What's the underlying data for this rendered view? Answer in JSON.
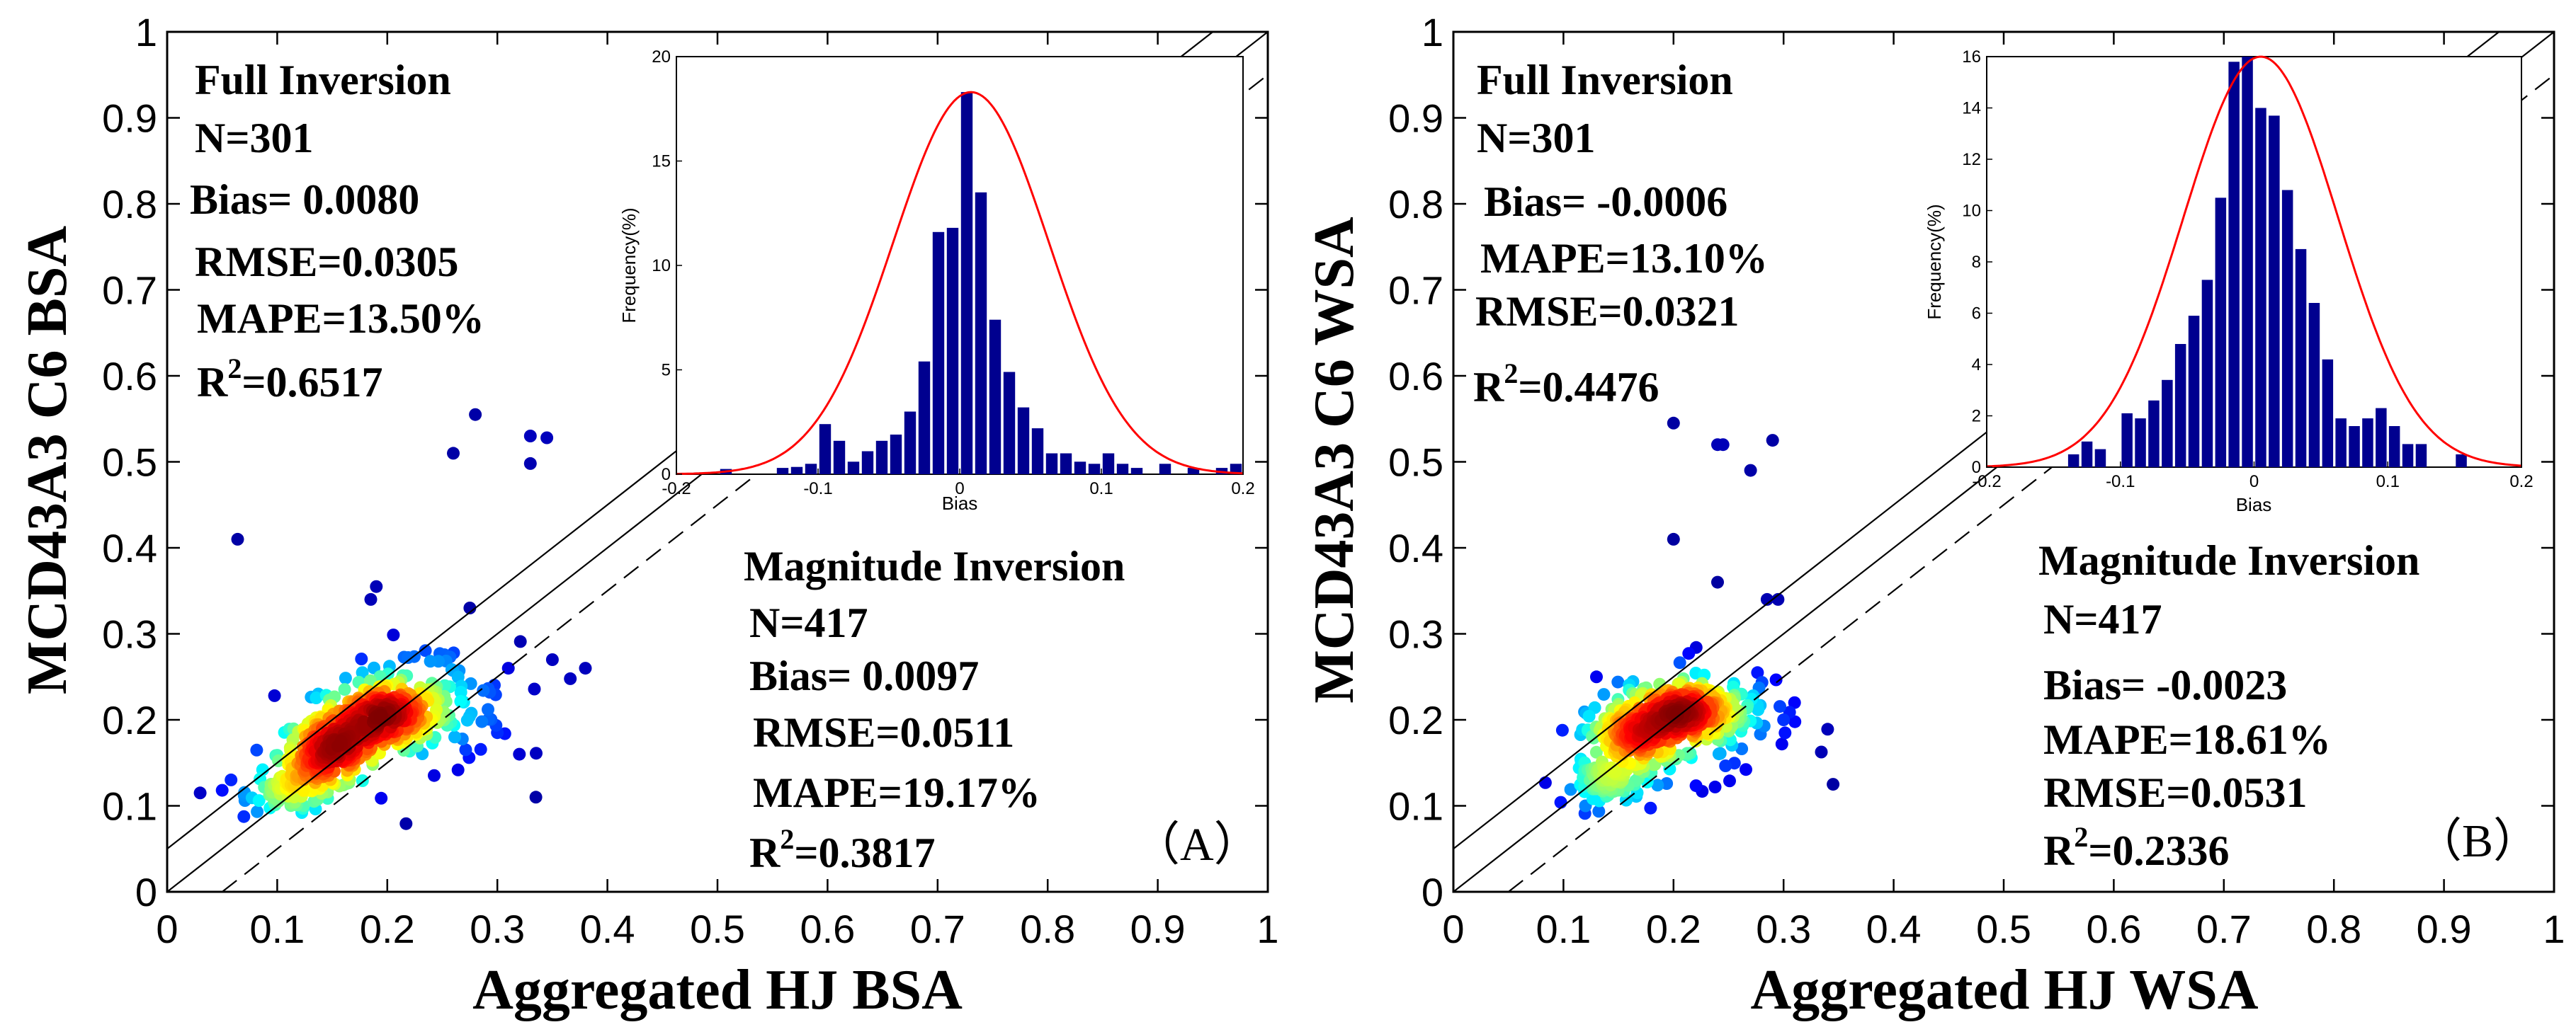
{
  "panels": [
    {
      "id": "A",
      "panel_label": "（A）",
      "xlabel": "Aggregated HJ BSA",
      "ylabel": "MCD43A3 C6 BSA",
      "xticks": [
        "0",
        "0.1",
        "0.2",
        "0.3",
        "0.4",
        "0.5",
        "0.6",
        "0.7",
        "0.8",
        "0.9",
        "1"
      ],
      "yticks": [
        "0",
        "0.1",
        "0.2",
        "0.3",
        "0.4",
        "0.5",
        "0.6",
        "0.7",
        "0.8",
        "0.9",
        "1"
      ],
      "full_inversion": {
        "title": "Full Inversion",
        "lines": [
          {
            "key": "n",
            "text": "N=301"
          },
          {
            "key": "bias",
            "text": "Bias= 0.0080"
          },
          {
            "key": "rmse",
            "text": "RMSE=0.0305"
          },
          {
            "key": "mape",
            "text": "MAPE=13.50%"
          },
          {
            "key": "r2",
            "prefix": "R",
            "sup": "2",
            "suffix": "=0.6517"
          }
        ]
      },
      "magnitude_inversion": {
        "title": "Magnitude Inversion",
        "lines": [
          {
            "key": "n",
            "text": "N=417"
          },
          {
            "key": "bias",
            "text": "Bias= 0.0097"
          },
          {
            "key": "rmse",
            "text": "RMSE=0.0511"
          },
          {
            "key": "mape",
            "text": "MAPE=19.17%"
          },
          {
            "key": "r2",
            "prefix": "R",
            "sup": "2",
            "suffix": "=0.3817"
          }
        ]
      },
      "inset": {
        "xlabel": "Bias",
        "ylabel": "Frequency(%)",
        "xticks": [
          "-0.2",
          "-0.1",
          "0",
          "0.1",
          "0.2"
        ],
        "yticks": [
          "0",
          "5",
          "10",
          "15",
          "20"
        ]
      }
    },
    {
      "id": "B",
      "panel_label": "（B）",
      "xlabel": "Aggregated HJ WSA",
      "ylabel": "MCD43A3 C6 WSA",
      "xticks": [
        "0",
        "0.1",
        "0.2",
        "0.3",
        "0.4",
        "0.5",
        "0.6",
        "0.7",
        "0.8",
        "0.9",
        "1"
      ],
      "yticks": [
        "0",
        "0.1",
        "0.2",
        "0.3",
        "0.4",
        "0.5",
        "0.6",
        "0.7",
        "0.8",
        "0.9",
        "1"
      ],
      "full_inversion": {
        "title": "Full Inversion",
        "lines": [
          {
            "key": "n",
            "text": "N=301"
          },
          {
            "key": "bias",
            "text": "Bias= -0.0006"
          },
          {
            "key": "mape",
            "text": "MAPE=13.10%"
          },
          {
            "key": "rmse",
            "text": "RMSE=0.0321"
          },
          {
            "key": "r2",
            "prefix": "R",
            "sup": "2",
            "suffix": "=0.4476"
          }
        ]
      },
      "magnitude_inversion": {
        "title": "Magnitude Inversion",
        "lines": [
          {
            "key": "n",
            "text": "N=417"
          },
          {
            "key": "bias",
            "text": "Bias= -0.0023"
          },
          {
            "key": "mape",
            "text": "MAPE=18.61%"
          },
          {
            "key": "rmse",
            "text": "RMSE=0.0531"
          },
          {
            "key": "r2",
            "prefix": "R",
            "sup": "2",
            "suffix": "=0.2336"
          }
        ]
      },
      "inset": {
        "xlabel": "Bias",
        "ylabel": "Frequency(%)",
        "xticks": [
          "-0.2",
          "-0.1",
          "0",
          "0.1",
          "0.2"
        ],
        "yticks": [
          "0",
          "2",
          "4",
          "6",
          "8",
          "10",
          "12",
          "14",
          "16"
        ]
      }
    }
  ],
  "chart_data": [
    {
      "type": "scatter",
      "panel": "A",
      "title": "",
      "xlabel": "Aggregated HJ BSA",
      "ylabel": "MCD43A3 C6 BSA",
      "xlim": [
        0,
        1
      ],
      "ylim": [
        0,
        1
      ],
      "colormap": "density (jet)",
      "reference_lines": [
        {
          "name": "1:1",
          "slope": 1,
          "intercept": 0,
          "style": "solid"
        },
        {
          "name": "+0.05",
          "slope": 1,
          "intercept": 0.05,
          "style": "solid"
        },
        {
          "name": "-0.05",
          "slope": 1,
          "intercept": -0.05,
          "style": "dashed"
        }
      ],
      "clusters": [
        {
          "cx": 0.195,
          "cy": 0.205,
          "sx": 0.028,
          "sy": 0.02,
          "n": 240
        },
        {
          "cx": 0.145,
          "cy": 0.16,
          "sx": 0.022,
          "sy": 0.02,
          "n": 190
        },
        {
          "cx": 0.115,
          "cy": 0.118,
          "sx": 0.02,
          "sy": 0.012,
          "n": 70
        },
        {
          "cx": 0.24,
          "cy": 0.22,
          "sx": 0.04,
          "sy": 0.035,
          "n": 90
        }
      ],
      "outliers": [
        [
          0.064,
          0.41
        ],
        [
          0.28,
          0.555
        ],
        [
          0.26,
          0.51
        ],
        [
          0.33,
          0.53
        ],
        [
          0.345,
          0.528
        ],
        [
          0.33,
          0.498
        ],
        [
          0.19,
          0.355
        ],
        [
          0.275,
          0.33
        ],
        [
          0.185,
          0.34
        ],
        [
          0.38,
          0.26
        ],
        [
          0.35,
          0.27
        ],
        [
          0.335,
          0.11
        ],
        [
          0.32,
          0.16
        ],
        [
          0.03,
          0.115
        ],
        [
          0.05,
          0.118
        ],
        [
          0.07,
          0.112
        ],
        [
          0.3,
          0.185
        ],
        [
          0.31,
          0.26
        ]
      ],
      "inset": {
        "type": "bar",
        "xlabel": "Bias",
        "ylabel": "Frequency(%)",
        "xlim": [
          -0.2,
          0.2
        ],
        "ylim": [
          0,
          20
        ],
        "bin_width": 0.01,
        "bin_centers": [
          -0.165,
          -0.125,
          -0.115,
          -0.105,
          -0.095,
          -0.085,
          -0.075,
          -0.065,
          -0.055,
          -0.045,
          -0.035,
          -0.025,
          -0.015,
          -0.005,
          0.005,
          0.015,
          0.025,
          0.035,
          0.045,
          0.055,
          0.065,
          0.075,
          0.085,
          0.095,
          0.105,
          0.115,
          0.125,
          0.145,
          0.165,
          0.185,
          0.195
        ],
        "frequencies": [
          0.25,
          0.3,
          0.35,
          0.5,
          2.4,
          1.6,
          0.6,
          1.1,
          1.6,
          1.9,
          3.0,
          5.4,
          11.6,
          11.8,
          18.3,
          13.5,
          7.4,
          4.9,
          3.2,
          2.2,
          1.0,
          1.0,
          0.6,
          0.5,
          1.0,
          0.5,
          0.3,
          0.5,
          0.3,
          0.3,
          0.5
        ],
        "fit": {
          "type": "normal",
          "mean": 0.008,
          "peak": 18.3,
          "sigma": 0.055
        }
      }
    },
    {
      "type": "scatter",
      "panel": "B",
      "title": "",
      "xlabel": "Aggregated HJ WSA",
      "ylabel": "MCD43A3 C6 WSA",
      "xlim": [
        0,
        1
      ],
      "ylim": [
        0,
        1
      ],
      "colormap": "density (jet)",
      "reference_lines": [
        {
          "name": "1:1",
          "slope": 1,
          "intercept": 0,
          "style": "solid"
        },
        {
          "name": "+0.05",
          "slope": 1,
          "intercept": 0.05,
          "style": "solid"
        },
        {
          "name": "-0.05",
          "slope": 1,
          "intercept": -0.05,
          "style": "dashed"
        }
      ],
      "clusters": [
        {
          "cx": 0.21,
          "cy": 0.21,
          "sx": 0.028,
          "sy": 0.018,
          "n": 230
        },
        {
          "cx": 0.165,
          "cy": 0.18,
          "sx": 0.022,
          "sy": 0.02,
          "n": 190
        },
        {
          "cx": 0.14,
          "cy": 0.125,
          "sx": 0.015,
          "sy": 0.012,
          "n": 70
        },
        {
          "cx": 0.23,
          "cy": 0.2,
          "sx": 0.04,
          "sy": 0.035,
          "n": 90
        }
      ],
      "outliers": [
        [
          0.2,
          0.545
        ],
        [
          0.24,
          0.52
        ],
        [
          0.245,
          0.52
        ],
        [
          0.29,
          0.525
        ],
        [
          0.27,
          0.49
        ],
        [
          0.2,
          0.41
        ],
        [
          0.24,
          0.36
        ],
        [
          0.285,
          0.34
        ],
        [
          0.295,
          0.34
        ],
        [
          0.345,
          0.125
        ],
        [
          0.3,
          0.2
        ],
        [
          0.12,
          0.1
        ],
        [
          0.13,
          0.25
        ],
        [
          0.31,
          0.22
        ]
      ],
      "inset": {
        "type": "bar",
        "xlabel": "Bias",
        "ylabel": "Frequency(%)",
        "xlim": [
          -0.2,
          0.2
        ],
        "ylim": [
          0,
          16
        ],
        "bin_width": 0.01,
        "bin_centers": [
          -0.135,
          -0.125,
          -0.115,
          -0.095,
          -0.085,
          -0.075,
          -0.065,
          -0.055,
          -0.045,
          -0.035,
          -0.025,
          -0.015,
          -0.005,
          0.005,
          0.015,
          0.025,
          0.035,
          0.045,
          0.055,
          0.065,
          0.075,
          0.085,
          0.095,
          0.105,
          0.115,
          0.125,
          0.155
        ],
        "frequencies": [
          0.5,
          1.0,
          0.7,
          2.1,
          1.9,
          2.6,
          3.4,
          4.8,
          5.9,
          7.3,
          10.5,
          15.8,
          16.0,
          14.0,
          13.7,
          10.8,
          8.5,
          6.4,
          4.2,
          1.9,
          1.6,
          1.9,
          2.3,
          1.6,
          0.9,
          0.9,
          0.5
        ],
        "fit": {
          "type": "normal",
          "mean": 0.005,
          "peak": 16.0,
          "sigma": 0.058
        }
      }
    }
  ]
}
